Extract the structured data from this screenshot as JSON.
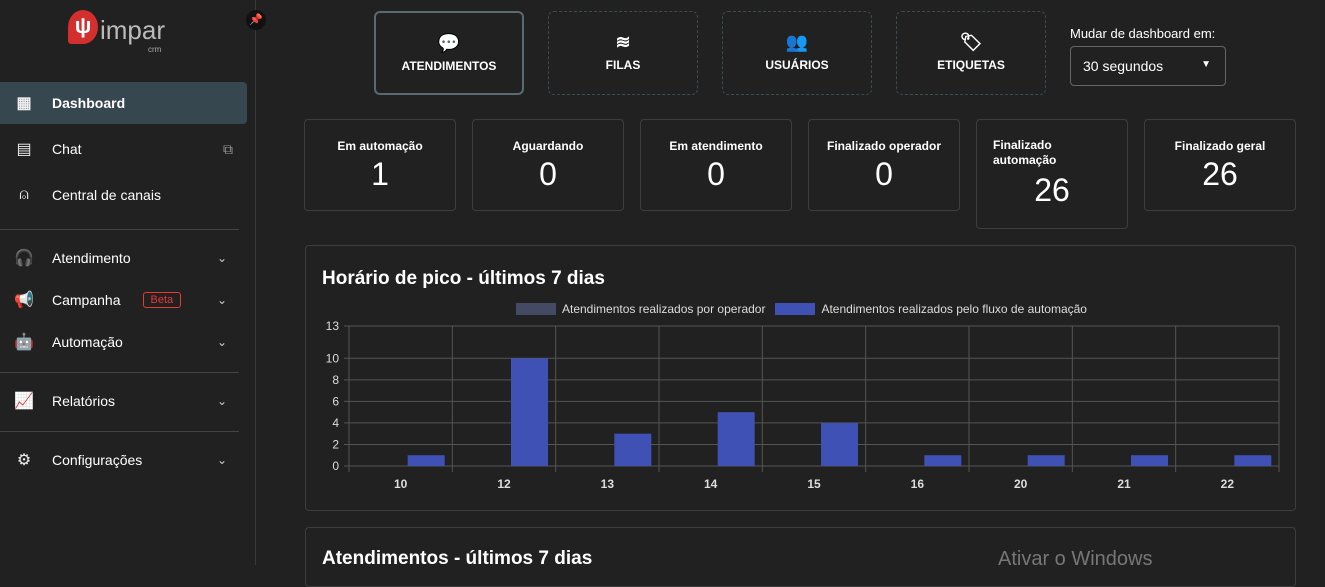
{
  "sidebar": {
    "logo": "impar",
    "logo_sub": "crm",
    "items": [
      {
        "label": "Dashboard",
        "icon": "dashboard-icon",
        "active": true
      },
      {
        "label": "Chat",
        "icon": "chat-icon",
        "external": true
      },
      {
        "label": "Central de canais",
        "icon": "antenna-icon"
      },
      {
        "label": "Atendimento",
        "icon": "headset-icon",
        "expandable": true
      },
      {
        "label": "Campanha",
        "icon": "megaphone-icon",
        "badge": "Beta",
        "expandable": true
      },
      {
        "label": "Automação",
        "icon": "robot-icon",
        "expandable": true
      },
      {
        "label": "Relatórios",
        "icon": "chart-icon",
        "expandable": true
      },
      {
        "label": "Configurações",
        "icon": "settings-icon",
        "expandable": true
      }
    ]
  },
  "tabs": [
    {
      "label": "ATENDIMENTOS",
      "selected": true
    },
    {
      "label": "FILAS"
    },
    {
      "label": "USUÁRIOS"
    },
    {
      "label": "ETIQUETAS"
    }
  ],
  "refresh": {
    "label": "Mudar de dashboard em:",
    "value": "30 segundos"
  },
  "stats": [
    {
      "title": "Em automação",
      "value": "1"
    },
    {
      "title": "Aguardando",
      "value": "0"
    },
    {
      "title": "Em atendimento",
      "value": "0"
    },
    {
      "title": "Finalizado operador",
      "value": "0"
    },
    {
      "title": "Finalizado automação",
      "value": "26"
    },
    {
      "title": "Finalizado geral",
      "value": "26"
    }
  ],
  "panel2_title": "Atendimentos - últimos 7 dias",
  "watermark": "Ativar o Windows",
  "chart_data": {
    "type": "bar",
    "title": "Horário de pico - últimos 7 dias",
    "categories": [
      "10",
      "12",
      "13",
      "14",
      "15",
      "16",
      "20",
      "21",
      "22"
    ],
    "series": [
      {
        "name": "Atendimentos realizados por operador",
        "color": "#444a63",
        "values": [
          0,
          0,
          0,
          0,
          0,
          0,
          0,
          0,
          0
        ]
      },
      {
        "name": "Atendimentos realizados pelo fluxo de automação",
        "color": "#3f51b5",
        "values": [
          1,
          10,
          3,
          5,
          4,
          1,
          1,
          1,
          1
        ]
      }
    ],
    "yticks": [
      0,
      2,
      4,
      6,
      8,
      10,
      13
    ],
    "ylim": [
      0,
      13
    ],
    "grid": true,
    "legend": "top"
  }
}
